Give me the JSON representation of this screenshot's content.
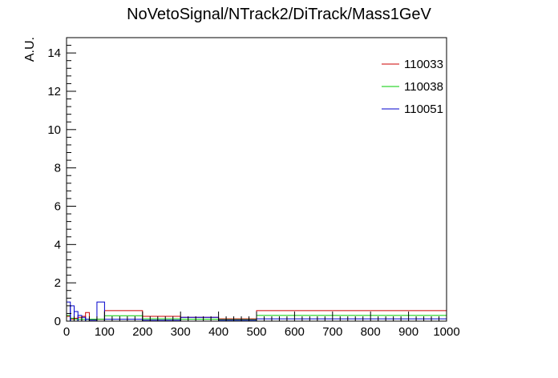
{
  "chart_data": {
    "type": "histogram",
    "title": "NoVetoSignal/NTrack2/DiTrack/Mass1GeV",
    "xlabel": "",
    "ylabel": "A.U.",
    "xlim": [
      0,
      1000
    ],
    "ylim": [
      0,
      14.8
    ],
    "grid": false,
    "legend_position": "top-right",
    "x_ticks": [
      "0",
      "100",
      "200",
      "300",
      "400",
      "500",
      "600",
      "700",
      "800",
      "900",
      "1000"
    ],
    "y_ticks": [
      "0",
      "2",
      "4",
      "6",
      "8",
      "10",
      "12",
      "14"
    ],
    "series": [
      {
        "name": "110033",
        "color": "#cc0000",
        "bins": [
          {
            "x0": 0,
            "x1": 10,
            "y": 0.25
          },
          {
            "x0": 10,
            "x1": 20,
            "y": 0.1
          },
          {
            "x0": 20,
            "x1": 30,
            "y": 0.15
          },
          {
            "x0": 30,
            "x1": 40,
            "y": 0.2
          },
          {
            "x0": 40,
            "x1": 50,
            "y": 0.25
          },
          {
            "x0": 50,
            "x1": 60,
            "y": 0.45
          },
          {
            "x0": 60,
            "x1": 80,
            "y": 0.1
          },
          {
            "x0": 80,
            "x1": 100,
            "y": 0.1
          },
          {
            "x0": 100,
            "x1": 200,
            "y": 0.55
          },
          {
            "x0": 200,
            "x1": 300,
            "y": 0.25
          },
          {
            "x0": 300,
            "x1": 400,
            "y": 0.2
          },
          {
            "x0": 400,
            "x1": 500,
            "y": 0.12
          },
          {
            "x0": 500,
            "x1": 1000,
            "y": 0.55
          }
        ]
      },
      {
        "name": "110038",
        "color": "#00cc00",
        "bins": [
          {
            "x0": 0,
            "x1": 10,
            "y": 0.3
          },
          {
            "x0": 10,
            "x1": 20,
            "y": 0.15
          },
          {
            "x0": 20,
            "x1": 30,
            "y": 0.1
          },
          {
            "x0": 30,
            "x1": 50,
            "y": 0.1
          },
          {
            "x0": 50,
            "x1": 80,
            "y": 0.1
          },
          {
            "x0": 80,
            "x1": 100,
            "y": 0.1
          },
          {
            "x0": 100,
            "x1": 200,
            "y": 0.28
          },
          {
            "x0": 200,
            "x1": 300,
            "y": 0.12
          },
          {
            "x0": 300,
            "x1": 400,
            "y": 0.1
          },
          {
            "x0": 400,
            "x1": 500,
            "y": 0.08
          },
          {
            "x0": 500,
            "x1": 1000,
            "y": 0.3
          }
        ]
      },
      {
        "name": "110051",
        "color": "#0000cc",
        "bins": [
          {
            "x0": 0,
            "x1": 10,
            "y": 1.0
          },
          {
            "x0": 10,
            "x1": 20,
            "y": 0.8
          },
          {
            "x0": 20,
            "x1": 30,
            "y": 0.5
          },
          {
            "x0": 30,
            "x1": 40,
            "y": 0.3
          },
          {
            "x0": 40,
            "x1": 50,
            "y": 0.2
          },
          {
            "x0": 50,
            "x1": 60,
            "y": 0.1
          },
          {
            "x0": 60,
            "x1": 80,
            "y": 0.05
          },
          {
            "x0": 80,
            "x1": 100,
            "y": 1.0
          },
          {
            "x0": 100,
            "x1": 200,
            "y": 0.1
          },
          {
            "x0": 200,
            "x1": 300,
            "y": 0.05
          },
          {
            "x0": 300,
            "x1": 400,
            "y": 0.2
          },
          {
            "x0": 400,
            "x1": 500,
            "y": 0.05
          },
          {
            "x0": 500,
            "x1": 1000,
            "y": 0.12
          }
        ]
      }
    ]
  }
}
